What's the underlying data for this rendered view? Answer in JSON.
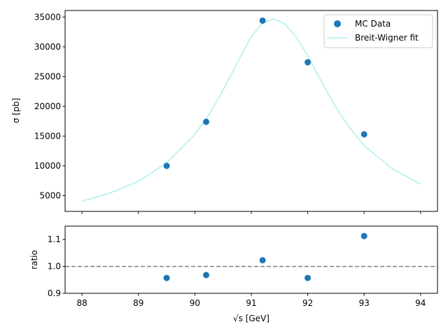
{
  "chart_data": [
    {
      "type": "scatter",
      "panel": "main",
      "ylabel": "σ [pb]",
      "xlim": [
        87.7,
        94.3
      ],
      "ylim": [
        2350,
        36100
      ],
      "yticks": [
        5000,
        10000,
        15000,
        20000,
        25000,
        30000,
        35000
      ],
      "grid": false,
      "legend": {
        "placement": "top-right",
        "entries": [
          "MC Data",
          "Breit-Wigner fit"
        ]
      },
      "series": [
        {
          "name": "MC Data",
          "kind": "scatter",
          "color": "#1f77b4",
          "x": [
            89.5,
            90.2,
            91.2,
            92.0,
            93.0
          ],
          "y": [
            10000,
            17400,
            34400,
            27400,
            15300
          ]
        },
        {
          "name": "Breit-Wigner fit",
          "kind": "line",
          "color": "#aeeef0",
          "x": [
            88.0,
            88.5,
            89.0,
            89.5,
            90.0,
            90.25,
            90.5,
            90.75,
            91.0,
            91.2,
            91.4,
            91.6,
            91.8,
            92.0,
            92.25,
            92.5,
            92.75,
            93.0,
            93.5,
            94.0
          ],
          "y": [
            4050,
            5450,
            7400,
            10500,
            15300,
            18600,
            22700,
            27300,
            31700,
            34000,
            34700,
            33800,
            31600,
            28500,
            24000,
            19800,
            16300,
            13400,
            9500,
            6900
          ]
        }
      ]
    },
    {
      "type": "scatter",
      "panel": "ratio",
      "xlabel": "√s [GeV]",
      "ylabel": "ratio",
      "xlim": [
        87.7,
        94.3
      ],
      "ylim": [
        0.9,
        1.15
      ],
      "xticks": [
        88,
        89,
        90,
        91,
        92,
        93,
        94
      ],
      "yticks": [
        0.9,
        1.0,
        1.1
      ],
      "grid": false,
      "reference_line": {
        "y": 1.0,
        "style": "dashed",
        "color": "#808080"
      },
      "series": [
        {
          "name": "",
          "kind": "scatter",
          "color": "#1f77b4",
          "x": [
            89.5,
            90.2,
            91.2,
            92.0,
            93.0
          ],
          "y": [
            0.957,
            0.968,
            1.023,
            0.957,
            1.113
          ]
        }
      ]
    }
  ]
}
